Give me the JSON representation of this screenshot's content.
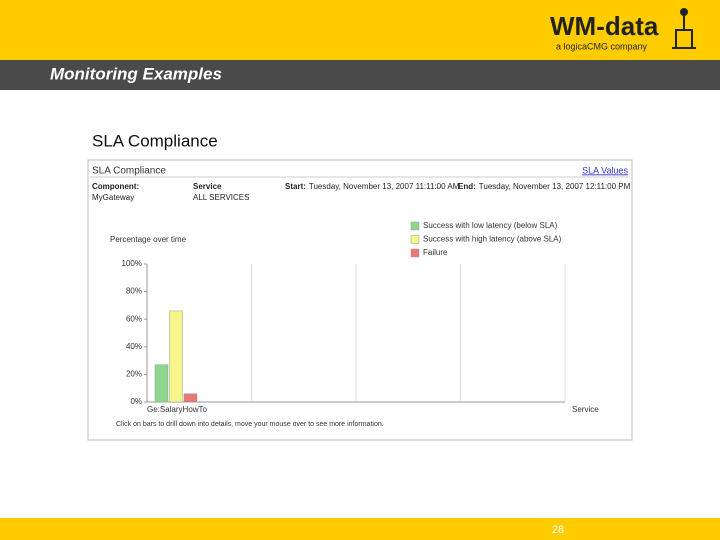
{
  "header": {
    "title": "Monitoring Examples",
    "logo": "WM-data",
    "logo_subtitle": "a logicaCMG company"
  },
  "section_title": "SLA Compliance",
  "panel": {
    "title": "SLA Compliance",
    "link": "SLA Values",
    "fields": [
      {
        "label": "Component:",
        "value": "MyGateway"
      },
      {
        "label": "Service",
        "value": "ALL SERVICES"
      },
      {
        "label": "Start:",
        "value": "Tuesday, November 13, 2007 11:11:00 AM"
      },
      {
        "label": "End:",
        "value": "Tuesday, November 13, 2007 12:11:00 PM"
      }
    ],
    "footnote": "Click on bars to drill down into details, move your mouse over to see more information."
  },
  "chart_data": {
    "type": "bar",
    "y_label": "Percentage over time",
    "x_label": "Service",
    "categories": [
      "Ge:SalaryHowTo"
    ],
    "series": [
      {
        "name": "Success with low latency (below SLA)",
        "color": "#8ed58e",
        "values": [
          27
        ]
      },
      {
        "name": "Success with high latency (above SLA)",
        "color": "#f5f58a",
        "values": [
          66
        ]
      },
      {
        "name": "Failure",
        "color": "#e87878",
        "values": [
          6
        ]
      }
    ],
    "ylim": [
      0,
      100
    ],
    "yticks": [
      {
        "value": 0,
        "label": "0%"
      },
      {
        "value": 20,
        "label": "20%"
      },
      {
        "value": 40,
        "label": "40%"
      },
      {
        "value": 60,
        "label": "60%"
      },
      {
        "value": 80,
        "label": "80%"
      },
      {
        "value": 100,
        "label": "100%"
      }
    ],
    "legend": "top-right"
  },
  "page_number": "28"
}
